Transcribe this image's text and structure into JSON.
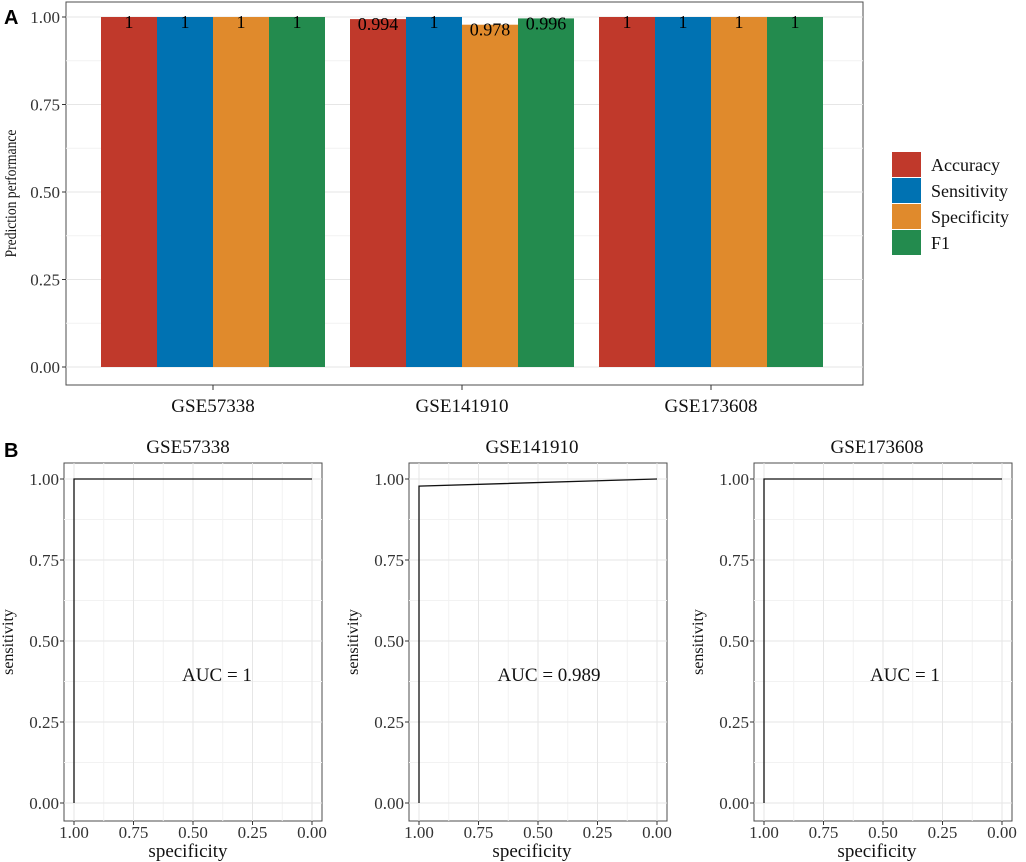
{
  "panel_labels": {
    "a": "A",
    "b": "B"
  },
  "colors": {
    "accuracy": "#c0392b",
    "sensitivity": "#0072b2",
    "specificity": "#e08a2c",
    "f1": "#238b4e"
  },
  "chart_data": [
    {
      "type": "bar",
      "panel": "A",
      "ylabel": "Prediction performance",
      "xlabel": "",
      "ylim": [
        0,
        1
      ],
      "yticks": [
        "0.00",
        "0.25",
        "0.50",
        "0.75",
        "1.00"
      ],
      "yticks_values": [
        0,
        0.25,
        0.5,
        0.75,
        1
      ],
      "categories": [
        "GSE57338",
        "GSE141910",
        "GSE173608"
      ],
      "legend_position": "right",
      "series": [
        {
          "name": "Accuracy",
          "values": [
            1,
            0.994,
            1
          ],
          "labels": [
            "1",
            "0.994",
            "1"
          ],
          "color": "#c0392b"
        },
        {
          "name": "Sensitivity",
          "values": [
            1,
            1,
            1
          ],
          "labels": [
            "1",
            "1",
            "1"
          ],
          "color": "#0072b2"
        },
        {
          "name": "Specificity",
          "values": [
            1,
            0.978,
            1
          ],
          "labels": [
            "1",
            "0.978",
            "1"
          ],
          "color": "#e08a2c"
        },
        {
          "name": "F1",
          "values": [
            1,
            0.996,
            1
          ],
          "labels": [
            "1",
            "0.996",
            "1"
          ],
          "color": "#238b4e"
        }
      ]
    },
    {
      "type": "line",
      "panel": "B",
      "title": "GSE57338",
      "xlabel": "specificity",
      "ylabel": "sensitivity",
      "xlim": [
        1,
        0
      ],
      "ylim": [
        0,
        1
      ],
      "xticks": [
        "1.00",
        "0.75",
        "0.50",
        "0.25",
        "0.00"
      ],
      "yticks": [
        "0.00",
        "0.25",
        "0.50",
        "0.75",
        "1.00"
      ],
      "annotation": "AUC = 1",
      "points": [
        [
          1,
          0
        ],
        [
          1,
          1
        ],
        [
          0,
          1
        ]
      ]
    },
    {
      "type": "line",
      "panel": "B",
      "title": "GSE141910",
      "xlabel": "specificity",
      "ylabel": "sensitivity",
      "xlim": [
        1,
        0
      ],
      "ylim": [
        0,
        1
      ],
      "xticks": [
        "1.00",
        "0.75",
        "0.50",
        "0.25",
        "0.00"
      ],
      "yticks": [
        "0.00",
        "0.25",
        "0.50",
        "0.75",
        "1.00"
      ],
      "annotation": "AUC = 0.989",
      "points": [
        [
          1,
          0
        ],
        [
          1,
          0.978
        ],
        [
          0,
          1
        ]
      ]
    },
    {
      "type": "line",
      "panel": "B",
      "title": "GSE173608",
      "xlabel": "specificity",
      "ylabel": "sensitivity",
      "xlim": [
        1,
        0
      ],
      "ylim": [
        0,
        1
      ],
      "xticks": [
        "1.00",
        "0.75",
        "0.50",
        "0.25",
        "0.00"
      ],
      "yticks": [
        "0.00",
        "0.25",
        "0.50",
        "0.75",
        "1.00"
      ],
      "annotation": "AUC = 1",
      "points": [
        [
          1,
          0
        ],
        [
          1,
          1
        ],
        [
          0,
          1
        ]
      ]
    }
  ]
}
